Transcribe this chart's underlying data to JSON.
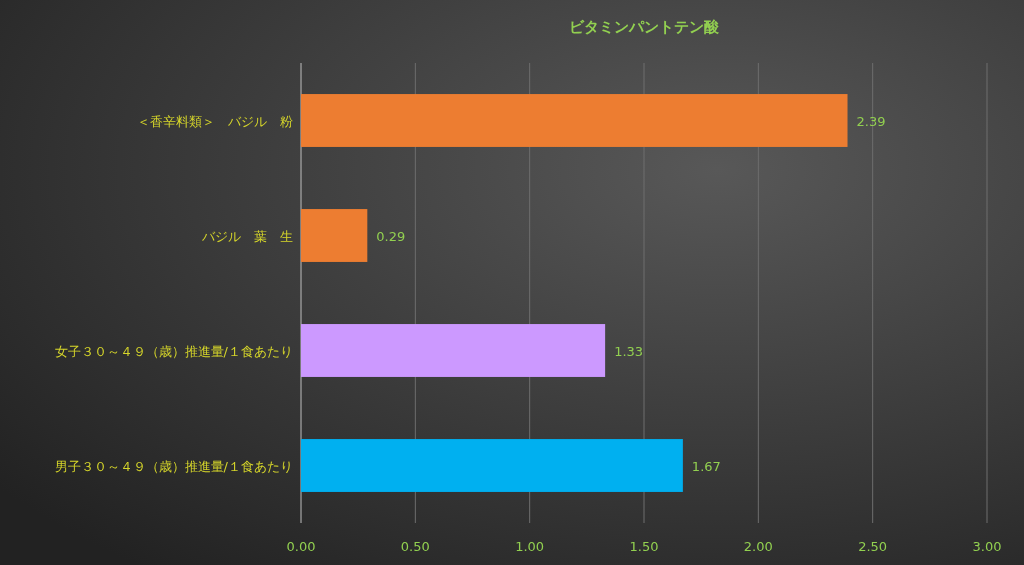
{
  "chart_data": {
    "type": "bar",
    "orientation": "horizontal",
    "title": "ビタミンパントテン酸",
    "categories": [
      "＜香辛料類＞　バジル　粉",
      "バジル　葉　生",
      "女子３０～４９（歳）推進量/１食あたり",
      "男子３０～４９（歳）推進量/１食あたり"
    ],
    "values": [
      2.39,
      0.29,
      1.33,
      1.67
    ],
    "colors": [
      "#ed7d31",
      "#ed7d31",
      "#cc99ff",
      "#00b0f0"
    ],
    "xlim": [
      0,
      3
    ],
    "xticks": [
      {
        "value": 0,
        "label": "0.00"
      },
      {
        "value": 0.5,
        "label": "0.50"
      },
      {
        "value": 1,
        "label": "1.00"
      },
      {
        "value": 1.5,
        "label": "1.50"
      },
      {
        "value": 2,
        "label": "2.00"
      },
      {
        "value": 2.5,
        "label": "2.50"
      },
      {
        "value": 3,
        "label": "3.00"
      }
    ],
    "grid": "x",
    "data_labels": true
  }
}
